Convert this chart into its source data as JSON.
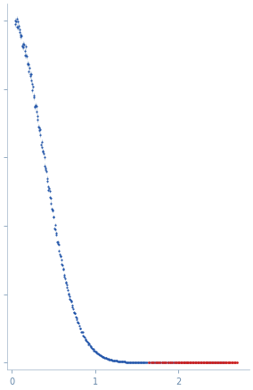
{
  "title": "",
  "xlabel": "",
  "ylabel": "",
  "xlim": [
    -0.05,
    2.85
  ],
  "ylim": [
    -0.02,
    1.05
  ],
  "use_log": false,
  "axis_color": "#a0b4c8",
  "blue_dot_color": "#2255aa",
  "red_dot_color": "#cc2222",
  "errorbar_color": "#b0c4d8",
  "bg_color": "#ffffff",
  "xticks": [
    0,
    1,
    2
  ],
  "xtick_color": "#6688aa",
  "ytick_color": "#6688aa",
  "seed": 42,
  "n_blue_dense": 120,
  "n_blue_mid": 100,
  "n_blue_high": 60,
  "n_red": 60
}
